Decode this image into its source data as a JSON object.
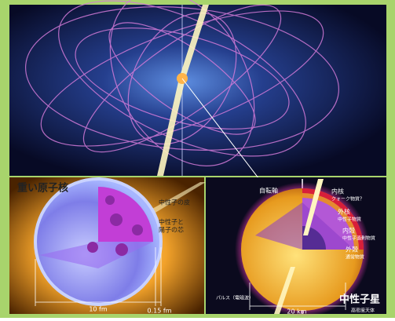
{
  "nucleus": {
    "title": "重い原子核",
    "skin_label": "中性子の皮",
    "core_label": [
      "中性子と",
      "陽子の芯"
    ],
    "diameter": "10 fm",
    "skin_thickness": "0.15 fm"
  },
  "neutron_star": {
    "axis_label": "自転軸",
    "layers": [
      {
        "name": "内核",
        "material": "クォーク物質？"
      },
      {
        "name": "外核",
        "material": "中性子物質"
      },
      {
        "name": "内殻",
        "material": "中性子過剰物質"
      },
      {
        "name": "外殻",
        "material": "通常物質"
      }
    ],
    "pulse_label": "パルス（電磁波）",
    "diameter": "20 km",
    "title": "中性子星",
    "subtitle": "高密度天体"
  }
}
